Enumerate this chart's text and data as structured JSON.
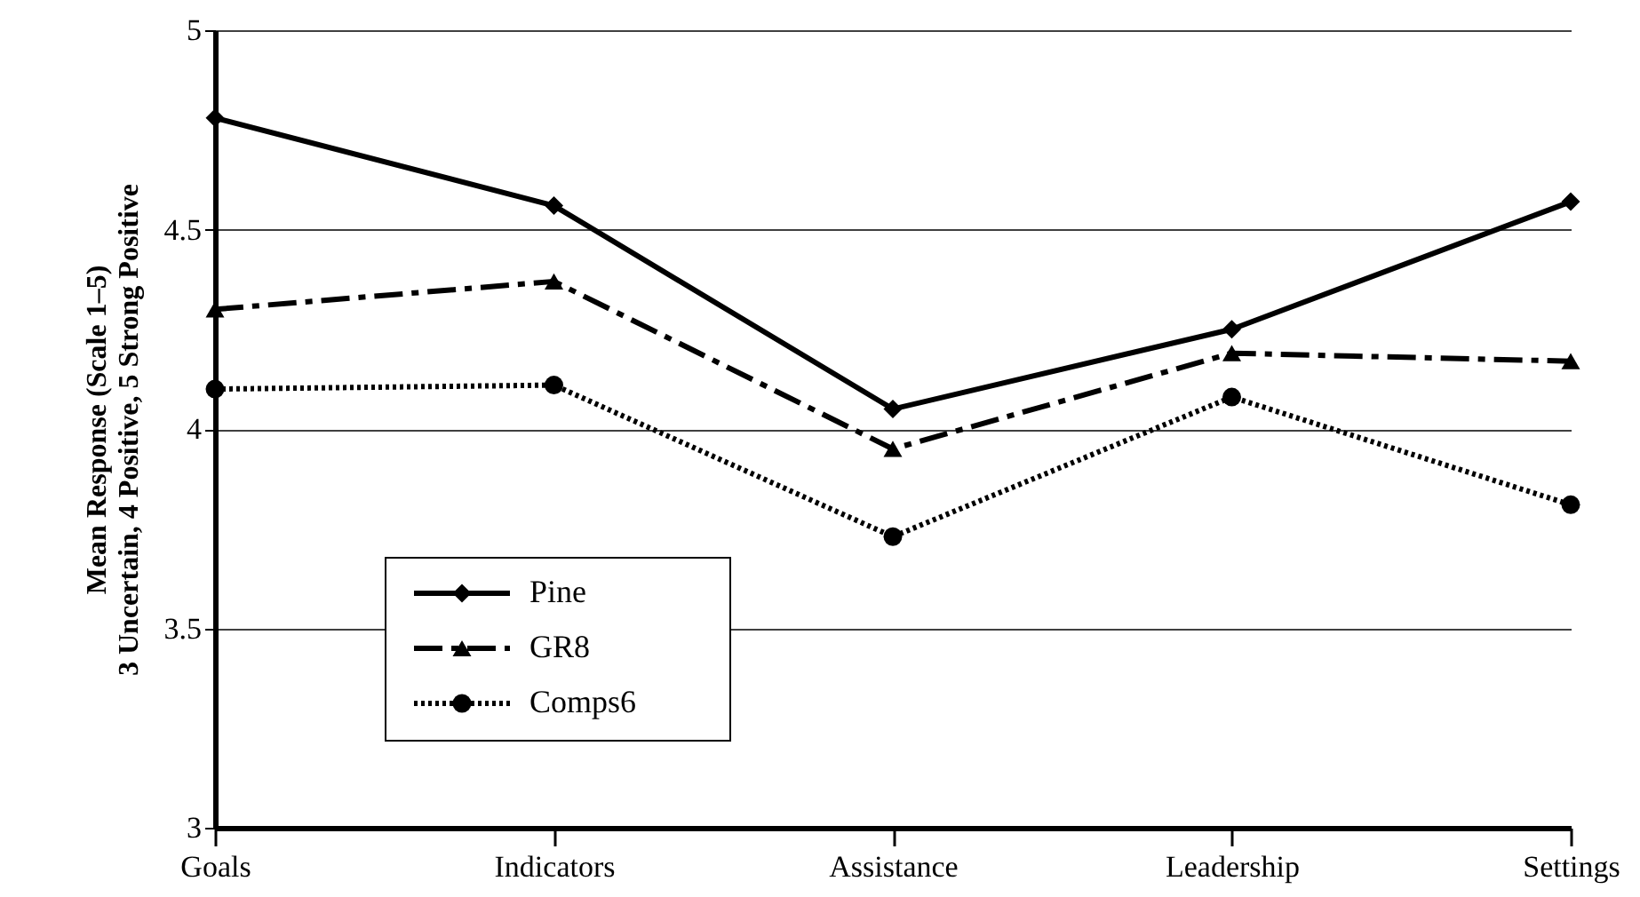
{
  "chart_data": {
    "type": "line",
    "ylabel": "Mean Response (Scale 1–5)\n3 Uncertain, 4 Positive, 5 Strong Positive",
    "categories": [
      "Goals",
      "Indicators",
      "Assistance",
      "Leadership",
      "Settings"
    ],
    "series": [
      {
        "name": "Pine",
        "color": "#000000",
        "marker": "diamond",
        "line_style": "solid",
        "values": [
          4.78,
          4.56,
          4.05,
          4.25,
          4.57
        ]
      },
      {
        "name": "GR8",
        "color": "#000000",
        "marker": "triangle",
        "line_style": "dashdot",
        "values": [
          4.3,
          4.37,
          3.95,
          4.19,
          4.17
        ]
      },
      {
        "name": "Comps6",
        "color": "#000000",
        "marker": "circle",
        "line_style": "dotted",
        "values": [
          4.1,
          4.11,
          3.73,
          4.08,
          3.81
        ]
      }
    ],
    "ylim": [
      3,
      5
    ],
    "yticks": [
      3,
      3.5,
      4,
      4.5,
      5
    ],
    "grid": "y",
    "legend": "bottom left"
  }
}
